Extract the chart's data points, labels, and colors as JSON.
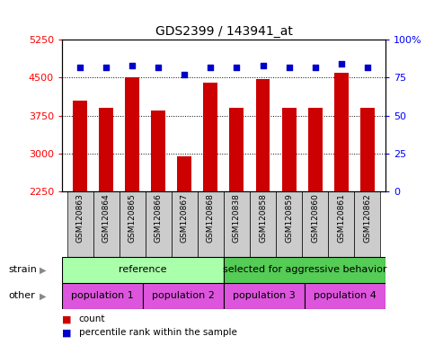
{
  "title": "GDS2399 / 143941_at",
  "samples": [
    "GSM120863",
    "GSM120864",
    "GSM120865",
    "GSM120866",
    "GSM120867",
    "GSM120868",
    "GSM120838",
    "GSM120858",
    "GSM120859",
    "GSM120860",
    "GSM120861",
    "GSM120862"
  ],
  "counts": [
    4050,
    3900,
    4500,
    3850,
    2950,
    4400,
    3900,
    4480,
    3900,
    3900,
    4600,
    3900
  ],
  "percentile_values": [
    82,
    82,
    83,
    82,
    77,
    82,
    82,
    83,
    82,
    82,
    84,
    82
  ],
  "ylim_left": [
    2250,
    5250
  ],
  "ylim_right": [
    0,
    100
  ],
  "yticks_left": [
    2250,
    3000,
    3750,
    4500,
    5250
  ],
  "yticks_right": [
    0,
    25,
    50,
    75,
    100
  ],
  "bar_color": "#cc0000",
  "dot_color": "#0000cc",
  "strain_blocks": [
    {
      "text": "reference",
      "start": 0,
      "end": 6,
      "color": "#aaffaa"
    },
    {
      "text": "selected for aggressive behavior",
      "start": 6,
      "end": 12,
      "color": "#55cc55"
    }
  ],
  "other_blocks": [
    {
      "text": "population 1",
      "start": 0,
      "end": 3,
      "color": "#dd55dd"
    },
    {
      "text": "population 2",
      "start": 3,
      "end": 6,
      "color": "#dd55dd"
    },
    {
      "text": "population 3",
      "start": 6,
      "end": 9,
      "color": "#dd55dd"
    },
    {
      "text": "population 4",
      "start": 9,
      "end": 12,
      "color": "#dd55dd"
    }
  ],
  "legend_items": [
    {
      "label": "count",
      "color": "#cc0000"
    },
    {
      "label": "percentile rank within the sample",
      "color": "#0000cc"
    }
  ],
  "row_labels": [
    {
      "text": "strain",
      "arrow": true
    },
    {
      "text": "other",
      "arrow": true
    }
  ]
}
